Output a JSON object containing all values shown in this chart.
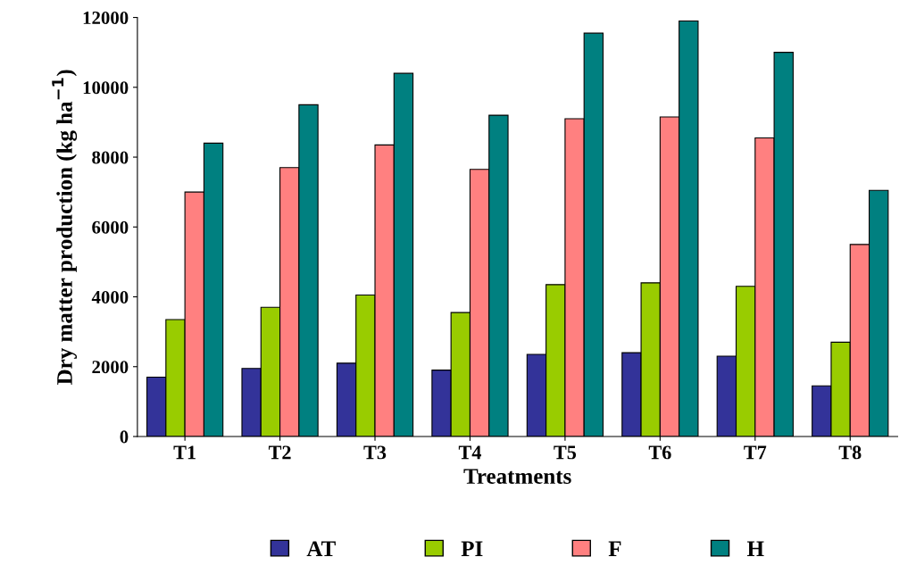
{
  "chart_data": {
    "type": "bar",
    "xlabel": "Treatments",
    "ylabel": "Dry matter production (kg ha$^{−1}$)",
    "categories": [
      "T1",
      "T2",
      "T3",
      "T4",
      "T5",
      "T6",
      "T7",
      "T8"
    ],
    "series": [
      {
        "name": "AT",
        "color": "#333399",
        "values": [
          1700,
          1950,
          2100,
          1900,
          2350,
          2400,
          2300,
          1450
        ]
      },
      {
        "name": "PI",
        "color": "#99cc00",
        "values": [
          3350,
          3700,
          4050,
          3550,
          4350,
          4400,
          4300,
          2700
        ]
      },
      {
        "name": "F",
        "color": "#ff8080",
        "values": [
          7000,
          7700,
          8350,
          7650,
          9100,
          9150,
          8550,
          5500
        ]
      },
      {
        "name": "H",
        "color": "#008080",
        "values": [
          8400,
          9500,
          10400,
          9200,
          11550,
          11900,
          11000,
          7050
        ]
      }
    ],
    "ylim": [
      0,
      12000
    ],
    "yticks": [
      0,
      2000,
      4000,
      6000,
      8000,
      10000,
      12000
    ],
    "grid": false,
    "legend": "bottom"
  }
}
